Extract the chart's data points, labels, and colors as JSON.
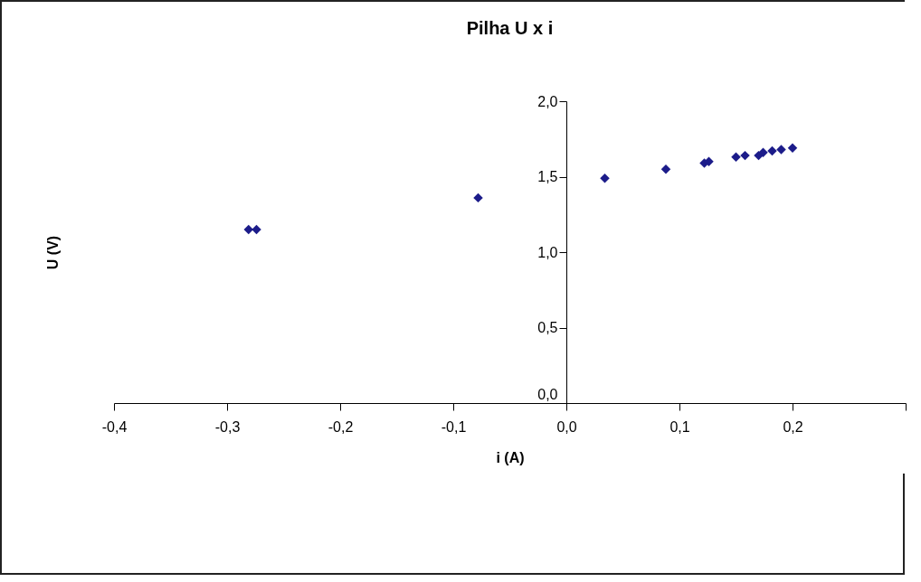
{
  "chart_data": {
    "type": "scatter",
    "title": "Pilha U x i",
    "xlabel": "i (A)",
    "ylabel": "U (V)",
    "x": [
      -0.281,
      -0.274,
      -0.078,
      0.034,
      0.088,
      0.122,
      0.126,
      0.15,
      0.158,
      0.17,
      0.174,
      0.182,
      0.19,
      0.2
    ],
    "series": [
      {
        "color": "#1c1c8a",
        "values": [
          1.15,
          1.15,
          1.36,
          1.49,
          1.55,
          1.59,
          1.6,
          1.63,
          1.64,
          1.64,
          1.66,
          1.67,
          1.68,
          1.69
        ]
      }
    ],
    "xlim": [
      -0.4,
      0.3
    ],
    "xticks": [
      {
        "value": -0.4,
        "label": "-0,4"
      },
      {
        "value": -0.3,
        "label": "-0,3"
      },
      {
        "value": -0.2,
        "label": "-0,2"
      },
      {
        "value": -0.1,
        "label": "-0,1"
      },
      {
        "value": 0,
        "label": "0,0"
      },
      {
        "value": 0.1,
        "label": "0,1"
      },
      {
        "value": 0.2,
        "label": "0,2"
      },
      {
        "value": 0.3,
        "label": null
      }
    ],
    "ylim": [
      0,
      2
    ],
    "yticks": [
      {
        "value": 0,
        "label": "0,0"
      },
      {
        "value": 0.5,
        "label": "0,5"
      },
      {
        "value": 1,
        "label": "1,0"
      },
      {
        "value": 1.5,
        "label": "1,5"
      },
      {
        "value": 2,
        "label": "2,0"
      }
    ],
    "marker": "diamond",
    "grid": false,
    "legend": false
  }
}
